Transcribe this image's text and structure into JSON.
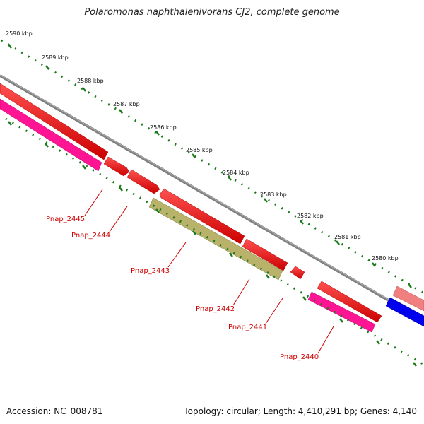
{
  "title": "Polaromonas naphthalenivorans CJ2, complete genome",
  "accession": "Accession: NC_008781",
  "summary": "Topology: circular; Length: 4,410,291 bp; Genes: 4,140",
  "ticks": [
    {
      "label": "2590 kbp"
    },
    {
      "label": "2589 kbp"
    },
    {
      "label": "2588 kbp"
    },
    {
      "label": "2587 kbp"
    },
    {
      "label": "2586 kbp"
    },
    {
      "label": "2585 kbp"
    },
    {
      "label": "2584 kbp"
    },
    {
      "label": "2583 kbp"
    },
    {
      "label": "2582 kbp"
    },
    {
      "label": "2581 kbp"
    },
    {
      "label": "2580 kbp"
    }
  ],
  "genes": [
    {
      "label": "Pnap_2445"
    },
    {
      "label": "Pnap_2444"
    },
    {
      "label": "Pnap_2443"
    },
    {
      "label": "Pnap_2442"
    },
    {
      "label": "Pnap_2441"
    },
    {
      "label": "Pnap_2440"
    }
  ],
  "colors": {
    "backbone": "#808080",
    "cds": "#ff0000",
    "gene": "#ff1493",
    "misc": "#b8b26a",
    "blue": "#0000ee",
    "pink": "#f08080",
    "tick": "#1a7a1a",
    "label": "#cc0000"
  }
}
